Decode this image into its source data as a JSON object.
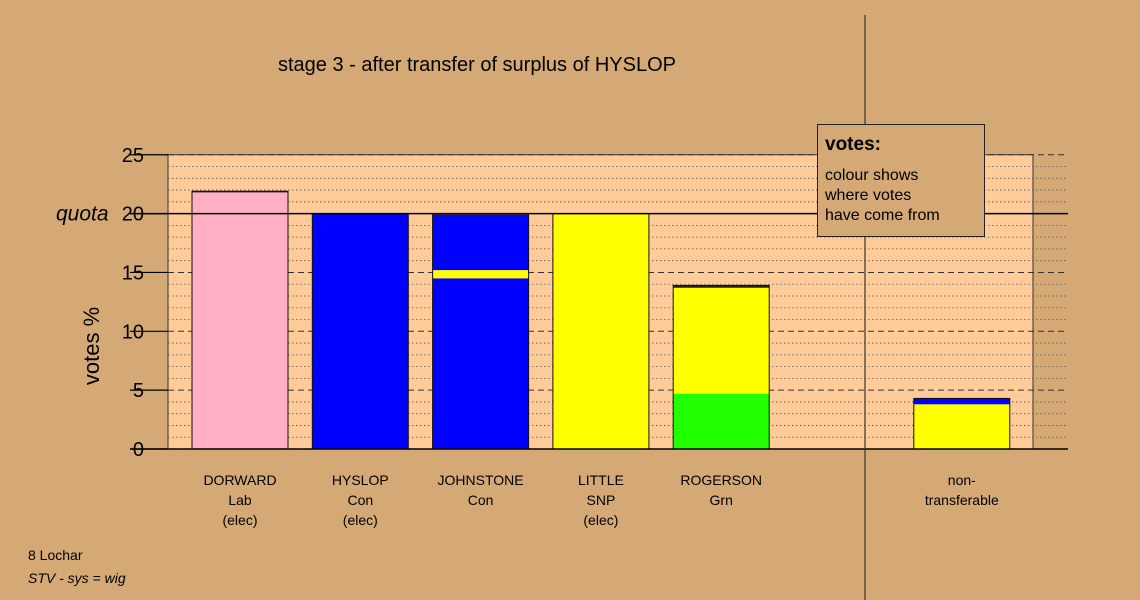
{
  "title": "stage 3 - after transfer of surplus of HYSLOP",
  "footer": {
    "constituency": "8 Lochar",
    "system": "STV - sys = wig"
  },
  "legend": {
    "title": "votes:",
    "body": "colour shows\nwhere votes\nhave come from"
  },
  "colors": {
    "background": "#D4A976",
    "plot_bg": "#FFCC99",
    "pink": "#FFB0C4",
    "blue": "#0000FF",
    "yellow": "#FFFF00",
    "green": "#22FF00",
    "dark": "#222222"
  },
  "chart_data": {
    "type": "bar",
    "stacked": true,
    "ylabel": "votes %",
    "ylim": [
      0,
      25
    ],
    "yticks": [
      0,
      5,
      10,
      15,
      20,
      25
    ],
    "quota": 20,
    "quota_label": "quota",
    "categories": [
      {
        "name": "DORWARD",
        "party": "Lab",
        "status": "(elec)"
      },
      {
        "name": "HYSLOP",
        "party": "Con",
        "status": "(elec)"
      },
      {
        "name": "JOHNSTONE",
        "party": "Con",
        "status": ""
      },
      {
        "name": "LITTLE",
        "party": "SNP",
        "status": "(elec)"
      },
      {
        "name": "ROGERSON",
        "party": "Grn",
        "status": ""
      },
      {
        "name": "non-",
        "party": "transferable",
        "status": ""
      }
    ],
    "bars": [
      {
        "slot": 0,
        "segments": [
          {
            "color": "pink",
            "value": 21.8
          },
          {
            "color": "dark",
            "value": 0.1
          }
        ]
      },
      {
        "slot": 1,
        "segments": [
          {
            "color": "blue",
            "value": 20.0
          }
        ]
      },
      {
        "slot": 2,
        "segments": [
          {
            "color": "blue",
            "value": 14.5
          },
          {
            "color": "yellow",
            "value": 0.7
          },
          {
            "color": "blue",
            "value": 4.7
          },
          {
            "color": "dark",
            "value": 0.1
          }
        ]
      },
      {
        "slot": 3,
        "segments": [
          {
            "color": "yellow",
            "value": 20.0
          }
        ]
      },
      {
        "slot": 4,
        "segments": [
          {
            "color": "green",
            "value": 4.7
          },
          {
            "color": "yellow",
            "value": 9.0
          },
          {
            "color": "dark",
            "value": 0.2
          }
        ]
      },
      {
        "slot": 6,
        "segments": [
          {
            "color": "yellow",
            "value": 3.8
          },
          {
            "color": "blue",
            "value": 0.5
          }
        ]
      }
    ]
  }
}
